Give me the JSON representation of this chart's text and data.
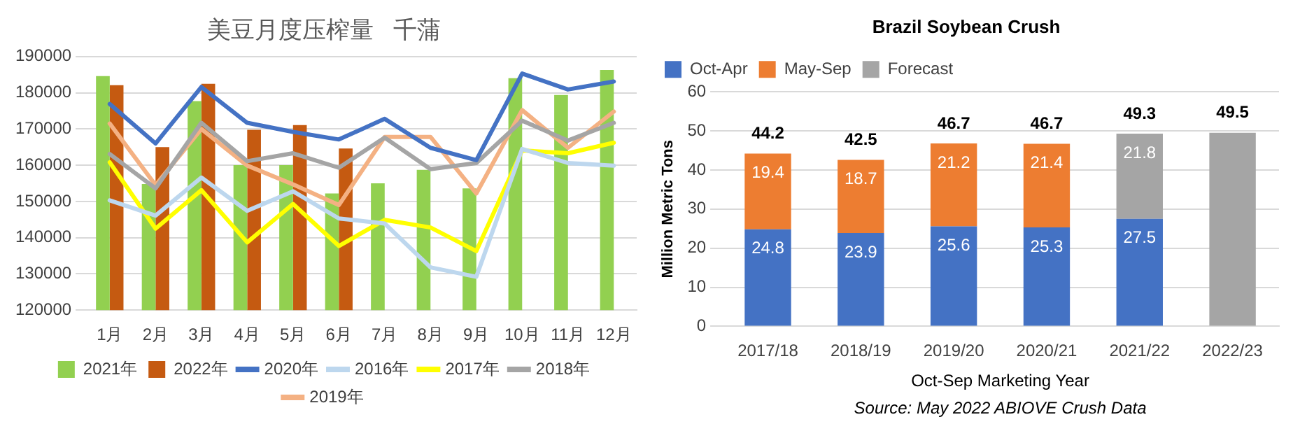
{
  "chart_data": [
    {
      "type": "bar",
      "title": "美豆月度压榨量   千蒲",
      "categories": [
        "1月",
        "2月",
        "3月",
        "4月",
        "5月",
        "6月",
        "7月",
        "8月",
        "9月",
        "10月",
        "11月",
        "12月"
      ],
      "ylim": [
        120000,
        190000
      ],
      "yticks": [
        120000,
        130000,
        140000,
        150000,
        160000,
        170000,
        180000,
        190000
      ],
      "grid": "y",
      "legend": "bottom",
      "marker": "none",
      "series": [
        {
          "name": "2021年",
          "type": "bar",
          "color": "#92d050",
          "values": [
            184600,
            154800,
            177700,
            160000,
            160000,
            152200,
            155000,
            158700,
            153600,
            184000,
            179400,
            186300
          ]
        },
        {
          "name": "2022年",
          "type": "bar",
          "color": "#c55a11",
          "values": [
            182100,
            165000,
            182500,
            169800,
            171100,
            164600,
            null,
            null,
            null,
            null,
            null,
            null
          ]
        },
        {
          "name": "2020年",
          "type": "line",
          "color": "#4472c4",
          "values": [
            176900,
            166000,
            181600,
            171700,
            169200,
            167100,
            172800,
            164800,
            161400,
            185300,
            180900,
            183100
          ]
        },
        {
          "name": "2016年",
          "type": "line",
          "color": "#bdd7ee",
          "values": [
            150300,
            146100,
            156600,
            147400,
            152800,
            145300,
            143900,
            131800,
            129200,
            164500,
            160600,
            159900
          ]
        },
        {
          "name": "2017年",
          "type": "line",
          "color": "#ffff00",
          "values": [
            160800,
            142500,
            153100,
            138700,
            149300,
            137700,
            144900,
            142800,
            136300,
            164100,
            163300,
            166200
          ]
        },
        {
          "name": "2018年",
          "type": "line",
          "color": "#a5a5a5",
          "values": [
            163100,
            153600,
            171700,
            161100,
            163300,
            159300,
            167600,
            158900,
            160600,
            172300,
            166800,
            171700
          ]
        },
        {
          "name": "2019年",
          "type": "line",
          "color": "#f4b183",
          "values": [
            171500,
            154500,
            170000,
            159900,
            154700,
            149000,
            167800,
            167800,
            152200,
            175200,
            164800,
            174800
          ]
        }
      ]
    },
    {
      "type": "bar",
      "title": "Brazil Soybean Crush",
      "xlabel": "Oct-Sep Marketing Year",
      "ylabel": "Million Metric Tons",
      "categories": [
        "2017/18",
        "2018/19",
        "2019/20",
        "2020/21",
        "2021/22",
        "2022/23"
      ],
      "stacked": true,
      "ylim": [
        0,
        60
      ],
      "yticks": [
        0,
        10,
        20,
        30,
        40,
        50,
        60
      ],
      "grid": "y",
      "legend": "top left",
      "totals": [
        "44.2",
        "42.5",
        "46.7",
        "46.7",
        "49.3",
        "49.5"
      ],
      "annotations": [
        "Source: May 2022 ABIOVE Crush Data"
      ],
      "series": [
        {
          "name": "Oct-Apr",
          "color": "#4472c4",
          "values": [
            24.8,
            23.9,
            25.6,
            25.3,
            27.5,
            null
          ],
          "value_labels": [
            "24.8",
            "23.9",
            "25.6",
            "25.3",
            "27.5",
            null
          ]
        },
        {
          "name": "May-Sep",
          "color": "#ed7d31",
          "values": [
            19.4,
            18.7,
            21.2,
            21.4,
            null,
            null
          ],
          "value_labels": [
            "19.4",
            "18.7",
            "21.2",
            "21.4",
            null,
            null
          ]
        },
        {
          "name": "Forecast",
          "color": "#a5a5a5",
          "values": [
            null,
            null,
            null,
            null,
            21.8,
            49.5
          ],
          "value_labels": [
            null,
            null,
            null,
            null,
            "21.8",
            null
          ]
        }
      ]
    }
  ]
}
